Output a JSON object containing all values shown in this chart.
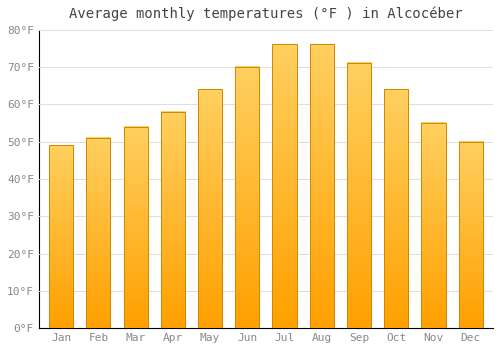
{
  "title": "Average monthly temperatures (°F ) in Alcocéber",
  "months": [
    "Jan",
    "Feb",
    "Mar",
    "Apr",
    "May",
    "Jun",
    "Jul",
    "Aug",
    "Sep",
    "Oct",
    "Nov",
    "Dec"
  ],
  "values": [
    49,
    51,
    54,
    58,
    64,
    70,
    76,
    76,
    71,
    64,
    55,
    50
  ],
  "bar_color_top": "#FFD060",
  "bar_color_bottom": "#FFA000",
  "bar_edge_color": "#CC8800",
  "background_color": "#FFFFFF",
  "grid_color": "#DDDDDD",
  "ylim": [
    0,
    80
  ],
  "yticks": [
    0,
    10,
    20,
    30,
    40,
    50,
    60,
    70,
    80
  ],
  "ytick_labels": [
    "0°F",
    "10°F",
    "20°F",
    "30°F",
    "40°F",
    "50°F",
    "60°F",
    "70°F",
    "80°F"
  ],
  "title_fontsize": 10,
  "tick_fontsize": 8,
  "tick_color": "#888888",
  "title_color": "#444444",
  "font_family": "monospace",
  "spine_color": "#000000",
  "bar_width": 0.65
}
